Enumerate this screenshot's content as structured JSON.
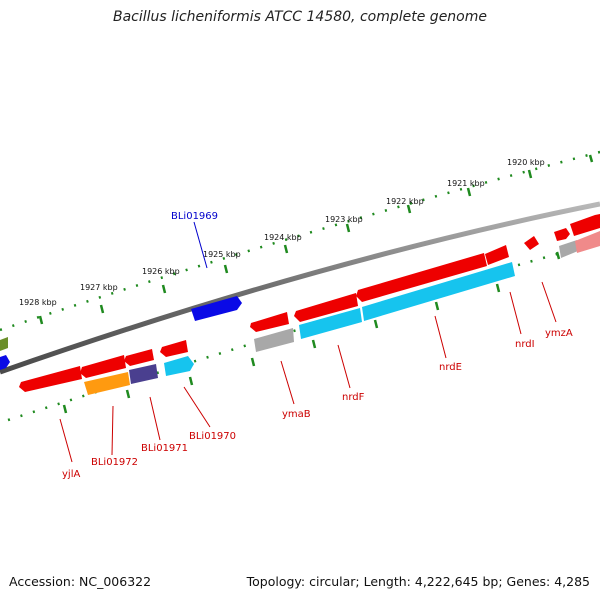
{
  "map": {
    "title": "Bacillus licheniformis ATCC 14580, complete genome",
    "accession": "Accession: NC_006322",
    "summary": "Topology: circular; Length: 4,222,645 bp; Genes: 4,285"
  },
  "ticks": [
    {
      "label": "1920 kbp",
      "kbp": 1920
    },
    {
      "label": "1921 kbp",
      "kbp": 1921
    },
    {
      "label": "1922 kbp",
      "kbp": 1922
    },
    {
      "label": "1923 kbp",
      "kbp": 1923
    },
    {
      "label": "1924 kbp",
      "kbp": 1924
    },
    {
      "label": "1925 kbp",
      "kbp": 1925
    },
    {
      "label": "1926 kbp",
      "kbp": 1926
    },
    {
      "label": "1927 kbp",
      "kbp": 1927
    },
    {
      "label": "1928 kbp",
      "kbp": 1928
    }
  ],
  "gene_labels": [
    {
      "name": "BLi01969",
      "color": "#0000cc"
    },
    {
      "name": "yjlA",
      "color": "#cc0000"
    },
    {
      "name": "BLi01972",
      "color": "#cc0000"
    },
    {
      "name": "BLi01971",
      "color": "#cc0000"
    },
    {
      "name": "BLi01970",
      "color": "#cc0000"
    },
    {
      "name": "ymaB",
      "color": "#cc0000"
    },
    {
      "name": "nrdF",
      "color": "#cc0000"
    },
    {
      "name": "nrdE",
      "color": "#cc0000"
    },
    {
      "name": "nrdI",
      "color": "#cc0000"
    },
    {
      "name": "ymzA",
      "color": "#cc0000"
    }
  ],
  "colors": {
    "backbone": "#7a7a7a",
    "tick": "#1f8a1f",
    "gene_red": "#ee0000",
    "gene_blue": "#0a0ae6",
    "gene_cyan": "#16c4ee",
    "gene_orange": "#ff9a10",
    "gene_purple": "#4a3f8f",
    "gene_gray": "#a8a8a8",
    "gene_olive": "#6b8f2a"
  }
}
